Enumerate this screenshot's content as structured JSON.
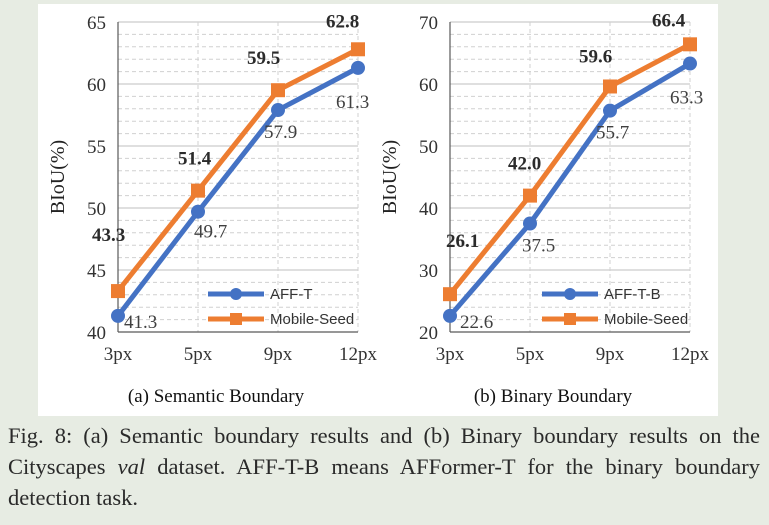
{
  "colors": {
    "aff": "#4472c4",
    "seed": "#ed7d31",
    "grid": "#bfbfbf",
    "axis": "#595959"
  },
  "chart_data": [
    {
      "type": "line",
      "subcaption": "(a) Semantic Boundary",
      "categories": [
        "3px",
        "5px",
        "9px",
        "12px"
      ],
      "ylabel": "BIoU(%)",
      "ylim": [
        40,
        65
      ],
      "yticks": [
        40,
        45,
        50,
        55,
        60,
        65
      ],
      "grid": true,
      "legend_position": "bottom-right",
      "series": [
        {
          "name": "AFF-T",
          "color": "#4472c4",
          "marker": "circle",
          "values": [
            41.3,
            49.7,
            57.9,
            61.3
          ],
          "labels": [
            "41.3",
            "49.7",
            "57.9",
            "61.3"
          ],
          "bold": false
        },
        {
          "name": "Mobile-Seed",
          "color": "#ed7d31",
          "marker": "square",
          "values": [
            43.3,
            51.4,
            59.5,
            62.8
          ],
          "labels": [
            "43.3",
            "51.4",
            "59.5",
            "62.8"
          ],
          "bold": true
        }
      ]
    },
    {
      "type": "line",
      "subcaption": "(b) Binary Boundary",
      "categories": [
        "3px",
        "5px",
        "9px",
        "12px"
      ],
      "ylabel": "BIoU(%)",
      "ylim": [
        20,
        70
      ],
      "yticks": [
        20,
        30,
        40,
        50,
        60,
        70
      ],
      "grid": true,
      "legend_position": "bottom-right",
      "series": [
        {
          "name": "AFF-T-B",
          "color": "#4472c4",
          "marker": "circle",
          "values": [
            22.6,
            37.5,
            55.7,
            63.3
          ],
          "labels": [
            "22.6",
            "37.5",
            "55.7",
            "63.3"
          ],
          "bold": false
        },
        {
          "name": "Mobile-Seed",
          "color": "#ed7d31",
          "marker": "square",
          "values": [
            26.1,
            42.0,
            59.6,
            66.4
          ],
          "labels": [
            "26.1",
            "42.0",
            "59.6",
            "66.4"
          ],
          "bold": true
        }
      ]
    }
  ],
  "caption": {
    "part1": "Fig. 8: (a) Semantic boundary results and (b) Binary boundary results on the Cityscapes ",
    "dataset": "val",
    "part2": " dataset. AFF-T-B means AFFormer-T for the binary boundary detection task."
  }
}
